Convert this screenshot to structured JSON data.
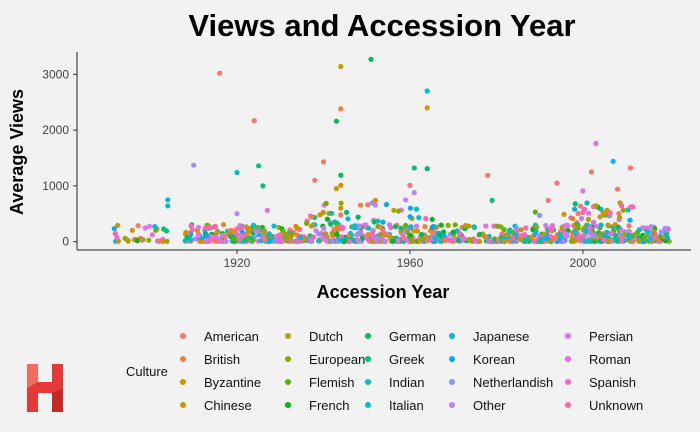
{
  "chart_data": {
    "type": "scatter",
    "title": "Views and Accession Year",
    "xlabel": "Accession Year",
    "ylabel": "Average Views",
    "xlim": [
      1883,
      2025
    ],
    "ylim": [
      -150,
      3400
    ],
    "xticks": [
      1920,
      1960,
      2000
    ],
    "yticks": [
      0,
      1000,
      2000,
      3000
    ],
    "grid": false,
    "legend_position": "bottom",
    "legend_title": "Culture",
    "categories": [
      "American",
      "British",
      "Byzantine",
      "Chinese",
      "Dutch",
      "European",
      "Flemish",
      "French",
      "German",
      "Greek",
      "Indian",
      "Italian",
      "Japanese",
      "Korean",
      "Netherlandish",
      "Other",
      "Persian",
      "Roman",
      "Spanish",
      "Unknown"
    ],
    "colors": {
      "American": "#F8766D",
      "British": "#EC8239",
      "Byzantine": "#DB8E00",
      "Chinese": "#C79800",
      "Dutch": "#AEA200",
      "European": "#8FAA00",
      "Flemish": "#64B200",
      "French": "#00B81B",
      "German": "#00BD5C",
      "Greek": "#00C08B",
      "Indian": "#00C1B2",
      "Italian": "#00BFD4",
      "Japanese": "#00B7E8",
      "Korean": "#00ABFD",
      "Netherlandish": "#8B93FF",
      "Other": "#B983FF",
      "Persian": "#DC71FA",
      "Roman": "#F066EA",
      "Spanish": "#FF61C7",
      "Unknown": "#FF66A8"
    },
    "outliers": [
      {
        "culture": "American",
        "x": 1916,
        "y": 3020
      },
      {
        "culture": "Chinese",
        "x": 1944,
        "y": 3140
      },
      {
        "culture": "German",
        "x": 1951,
        "y": 3270
      },
      {
        "culture": "Japanese",
        "x": 1964,
        "y": 2700
      },
      {
        "culture": "Byzantine",
        "x": 1964,
        "y": 2400
      },
      {
        "culture": "British",
        "x": 1944,
        "y": 2380
      },
      {
        "culture": "American",
        "x": 1924,
        "y": 2170
      },
      {
        "culture": "German",
        "x": 1943,
        "y": 2160
      },
      {
        "culture": "Persian",
        "x": 2003,
        "y": 1760
      },
      {
        "culture": "Japanese",
        "x": 2007,
        "y": 1440
      },
      {
        "culture": "American",
        "x": 1940,
        "y": 1430
      },
      {
        "culture": "Netherlandish",
        "x": 1910,
        "y": 1370
      },
      {
        "culture": "Greek",
        "x": 1925,
        "y": 1360
      },
      {
        "culture": "Greek",
        "x": 1961,
        "y": 1320
      },
      {
        "culture": "German",
        "x": 1964,
        "y": 1310
      },
      {
        "culture": "American",
        "x": 2011,
        "y": 1320
      },
      {
        "culture": "Japanese",
        "x": 1920,
        "y": 1240
      },
      {
        "culture": "American",
        "x": 2002,
        "y": 1250
      },
      {
        "culture": "American",
        "x": 1978,
        "y": 1190
      },
      {
        "culture": "German",
        "x": 1944,
        "y": 1190
      },
      {
        "culture": "American",
        "x": 1938,
        "y": 1100
      },
      {
        "culture": "American",
        "x": 1994,
        "y": 1050
      },
      {
        "culture": "Byzantine",
        "x": 1944,
        "y": 1010
      },
      {
        "culture": "Greek",
        "x": 1926,
        "y": 1000
      },
      {
        "culture": "American",
        "x": 1960,
        "y": 1010
      },
      {
        "culture": "Chinese",
        "x": 1943,
        "y": 950
      },
      {
        "culture": "American",
        "x": 2008,
        "y": 940
      },
      {
        "culture": "Persian",
        "x": 2000,
        "y": 910
      },
      {
        "culture": "Other",
        "x": 1961,
        "y": 880
      },
      {
        "culture": "Japanese",
        "x": 1904,
        "y": 750
      },
      {
        "culture": "Other",
        "x": 1959,
        "y": 750
      },
      {
        "culture": "Byzantine",
        "x": 1952,
        "y": 740
      },
      {
        "culture": "American",
        "x": 1992,
        "y": 740
      },
      {
        "culture": "Greek",
        "x": 1979,
        "y": 740
      },
      {
        "culture": "Italian",
        "x": 1904,
        "y": 640
      },
      {
        "culture": "Dutch",
        "x": 2003,
        "y": 640
      },
      {
        "culture": "Unknown",
        "x": 2011,
        "y": 620
      },
      {
        "culture": "Byzantine",
        "x": 1944,
        "y": 600
      },
      {
        "culture": "Persian",
        "x": 1927,
        "y": 560
      },
      {
        "culture": "Flemish",
        "x": 1989,
        "y": 530
      },
      {
        "culture": "Other",
        "x": 1920,
        "y": 500
      },
      {
        "culture": "American",
        "x": 1944,
        "y": 480
      },
      {
        "culture": "American",
        "x": 1937,
        "y": 460
      },
      {
        "culture": "Netherlandish",
        "x": 1990,
        "y": 470
      },
      {
        "culture": "German",
        "x": 1948,
        "y": 440
      }
    ]
  }
}
